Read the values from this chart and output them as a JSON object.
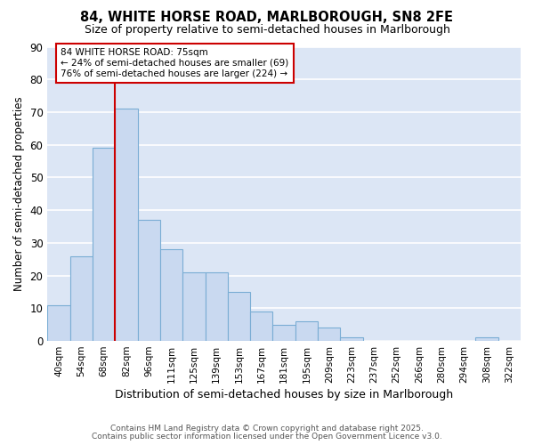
{
  "title1": "84, WHITE HORSE ROAD, MARLBOROUGH, SN8 2FE",
  "title2": "Size of property relative to semi-detached houses in Marlborough",
  "xlabel": "Distribution of semi-detached houses by size in Marlborough",
  "ylabel": "Number of semi-detached properties",
  "bar_labels": [
    "40sqm",
    "54sqm",
    "68sqm",
    "82sqm",
    "96sqm",
    "111sqm",
    "125sqm",
    "139sqm",
    "153sqm",
    "167sqm",
    "181sqm",
    "195sqm",
    "209sqm",
    "223sqm",
    "237sqm",
    "252sqm",
    "266sqm",
    "280sqm",
    "294sqm",
    "308sqm",
    "322sqm"
  ],
  "bar_values": [
    11,
    26,
    59,
    71,
    37,
    28,
    21,
    21,
    15,
    9,
    5,
    6,
    4,
    1,
    0,
    0,
    0,
    0,
    0,
    1,
    0
  ],
  "bar_color": "#c9d9f0",
  "bar_edge_color": "#7aadd4",
  "axes_bg_color": "#dce6f5",
  "figure_bg_color": "#ffffff",
  "grid_color": "#ffffff",
  "vline_x": 2.5,
  "vline_color": "#cc0000",
  "annotation_text_line1": "84 WHITE HORSE ROAD: 75sqm",
  "annotation_text_line2": "← 24% of semi-detached houses are smaller (69)",
  "annotation_text_line3": "76% of semi-detached houses are larger (224) →",
  "footer1": "Contains HM Land Registry data © Crown copyright and database right 2025.",
  "footer2": "Contains public sector information licensed under the Open Government Licence v3.0.",
  "ylim": [
    0,
    90
  ],
  "yticks": [
    0,
    10,
    20,
    30,
    40,
    50,
    60,
    70,
    80,
    90
  ]
}
